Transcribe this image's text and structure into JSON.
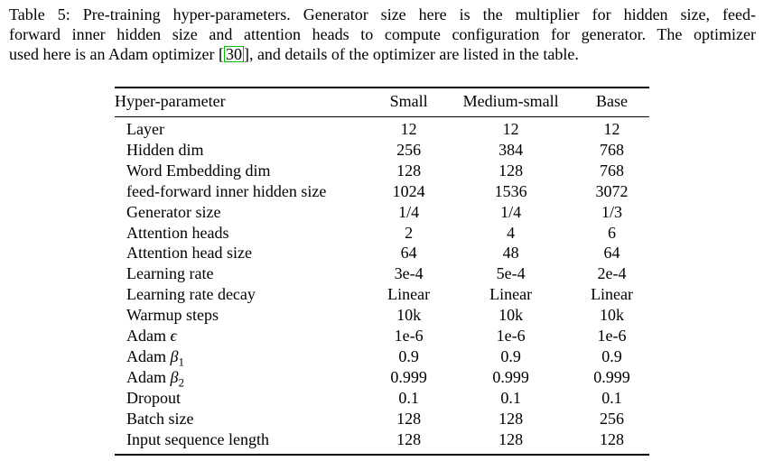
{
  "caption": {
    "line1": "Table 5: Pre-training hyper-parameters. Generator size here is the multiplier for hidden size, feed-",
    "line2": "forward inner hidden size and attention heads to compute configuration for generator. The optimizer",
    "line3_prefix": "used here is an Adam optimizer ",
    "citation_open_bracket": "[",
    "citation_number": "30",
    "citation_close_bracket": "]",
    "line3_suffix": ", and details of the optimizer are listed in the table."
  },
  "table": {
    "headers": [
      "Hyper-parameter",
      "Small",
      "Medium-small",
      "Base"
    ],
    "rows": [
      {
        "label": "Layer",
        "values": [
          "12",
          "12",
          "12"
        ]
      },
      {
        "label": "Hidden dim",
        "values": [
          "256",
          "384",
          "768"
        ]
      },
      {
        "label": "Word Embedding dim",
        "values": [
          "128",
          "128",
          "768"
        ]
      },
      {
        "label": "feed-forward inner hidden size",
        "values": [
          "1024",
          "1536",
          "3072"
        ]
      },
      {
        "label": "Generator size",
        "values": [
          "1/4",
          "1/4",
          "1/3"
        ]
      },
      {
        "label": "Attention heads",
        "values": [
          "2",
          "4",
          "6"
        ]
      },
      {
        "label": "Attention head size",
        "values": [
          "64",
          "48",
          "64"
        ]
      },
      {
        "label": "Learning rate",
        "values": [
          "3e-4",
          "5e-4",
          "2e-4"
        ]
      },
      {
        "label": "Learning rate decay",
        "values": [
          "Linear",
          "Linear",
          "Linear"
        ]
      },
      {
        "label": "Warmup steps",
        "values": [
          "10k",
          "10k",
          "10k"
        ]
      },
      {
        "label": "Adam ",
        "math": "ϵ",
        "values": [
          "1e-6",
          "1e-6",
          "1e-6"
        ]
      },
      {
        "label": "Adam ",
        "math": "β",
        "sub": "1",
        "values": [
          "0.9",
          "0.9",
          "0.9"
        ]
      },
      {
        "label": "Adam ",
        "math": "β",
        "sub": "2",
        "values": [
          "0.999",
          "0.999",
          "0.999"
        ]
      },
      {
        "label": "Dropout",
        "values": [
          "0.1",
          "0.1",
          "0.1"
        ]
      },
      {
        "label": "Batch size",
        "values": [
          "128",
          "128",
          "256"
        ]
      },
      {
        "label": "Input sequence length",
        "values": [
          "128",
          "128",
          "128"
        ]
      }
    ]
  },
  "colors": {
    "citation_box_border": "#00c000",
    "text": "#000000",
    "background": "#ffffff"
  }
}
